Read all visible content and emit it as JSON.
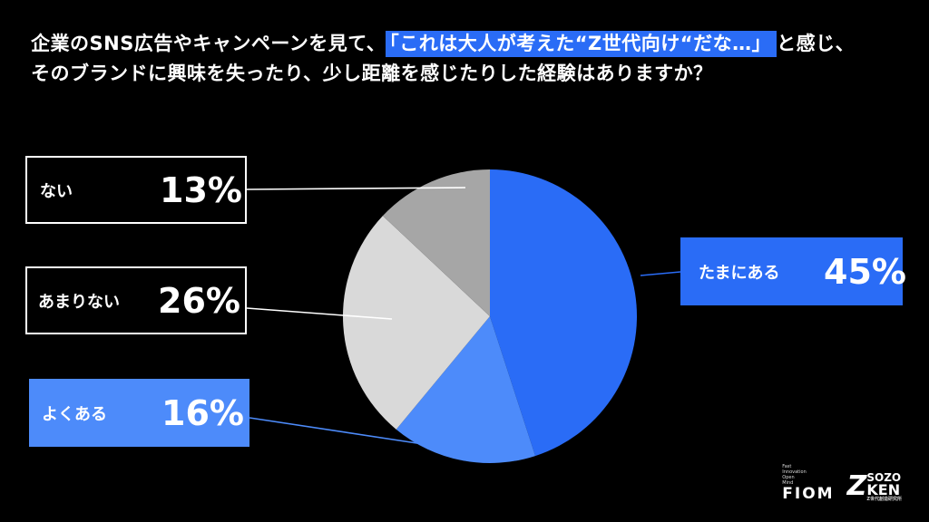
{
  "title": {
    "line1_pre": "企業のSNS広告やキャンペーンを見て、",
    "line1_highlight": "「これは大人が考えた“Z世代向け“だな…」",
    "line1_post": "と感じ、",
    "line2": "そのブランドに興味を失ったり、少し距離を感じたりした経験はありますか？"
  },
  "chart_data": {
    "type": "pie",
    "slices": [
      {
        "label": "たまにある",
        "value": 45,
        "display": "45%",
        "color": "#2a6cf6"
      },
      {
        "label": "よくある",
        "value": 16,
        "display": "16%",
        "color": "#4d8bfa"
      },
      {
        "label": "あまりない",
        "value": 26,
        "display": "26%",
        "color": "#d9d9d9"
      },
      {
        "label": "ない",
        "value": 13,
        "display": "13%",
        "color": "#a6a6a6"
      }
    ],
    "start_angle": "12 o'clock",
    "direction": "clockwise"
  },
  "logos": {
    "fiom_tagline": [
      "Fast",
      "Innovation",
      "Open",
      "Mind"
    ],
    "fiom": "FIOM",
    "sozo_z": "Z",
    "sozo_top": "SOZO",
    "sozo_bottom": "KEN",
    "sozo_caption": "Z世代創造研究所"
  }
}
